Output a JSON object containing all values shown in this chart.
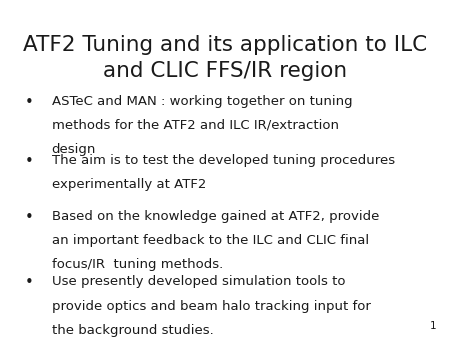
{
  "title_line1": "ATF2 Tuning and its application to ILC",
  "title_line2": "and CLIC FFS/IR region",
  "background_color": "#ffffff",
  "text_color": "#1a1a1a",
  "bullet_points": [
    "ASTeC and MAN : working together on tuning\nmethods for the ATF2 and ILC IR/extraction\ndesign",
    "The aim is to test the developed tuning procedures\nexperimentally at ATF2",
    "Based on the knowledge gained at ATF2, provide\nan important feedback to the ILC and CLIC final\nfocus/IR  tuning methods.",
    "Use presently developed simulation tools to\nprovide optics and beam halo tracking input for\nthe background studies."
  ],
  "page_number": "1",
  "title_fontsize": 15.5,
  "bullet_fontsize": 9.5,
  "page_num_fontsize": 7.5
}
